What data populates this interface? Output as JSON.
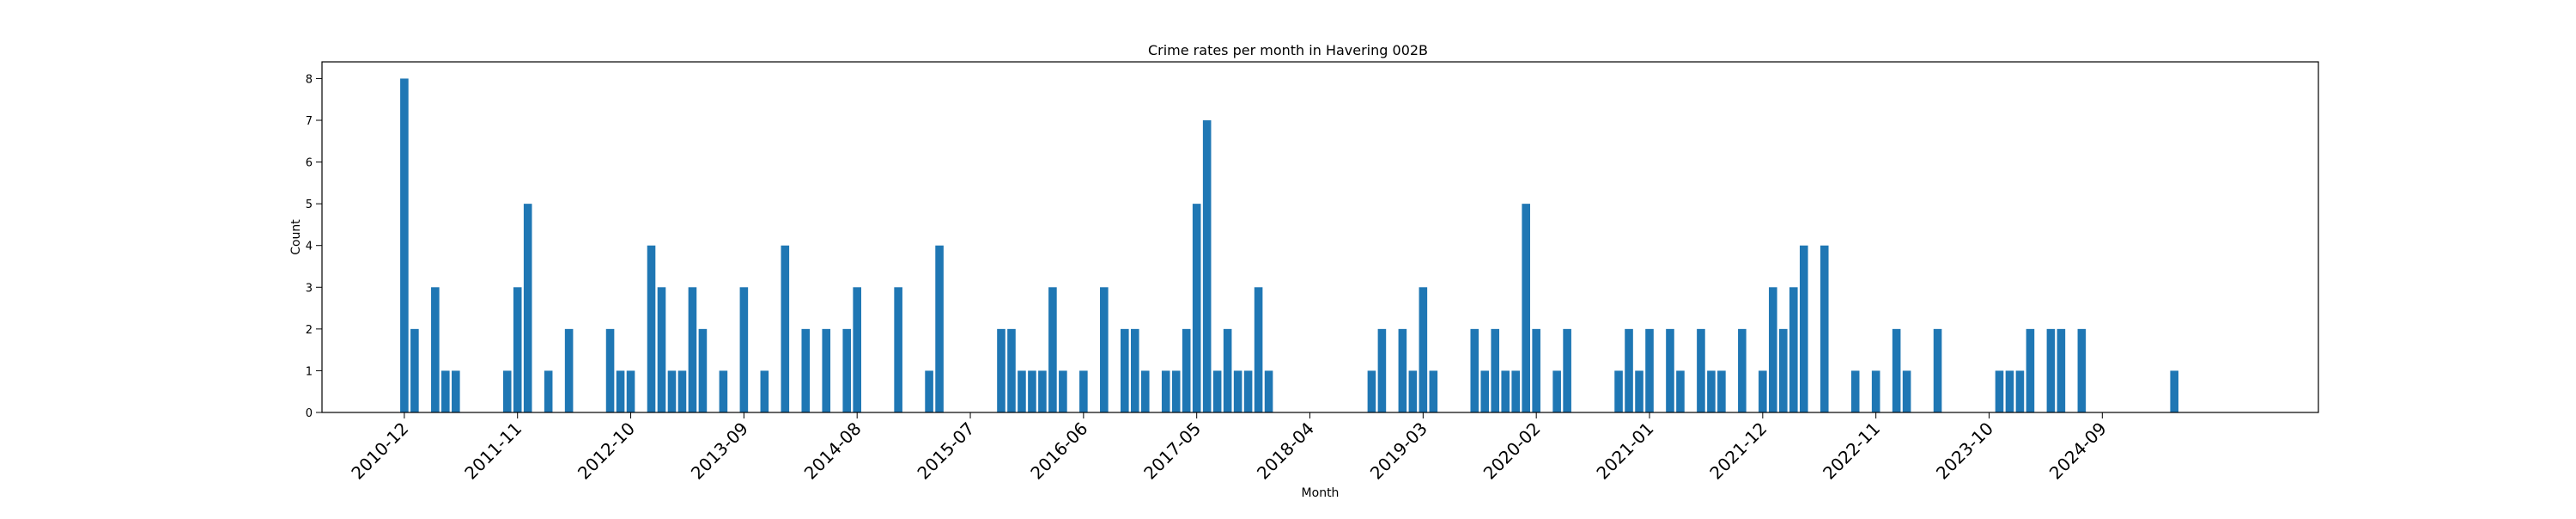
{
  "chart_data": {
    "type": "bar",
    "title": "Crime rates per month in Havering 002B",
    "xlabel": "Month",
    "ylabel": "Count",
    "ylim": [
      0,
      8.4
    ],
    "x_range": [
      "2010-04",
      "2026-06"
    ],
    "y_ticks": [
      0,
      1,
      2,
      3,
      4,
      5,
      6,
      7,
      8
    ],
    "x_ticks": [
      "2010-12",
      "2011-11",
      "2012-10",
      "2013-09",
      "2014-08",
      "2015-07",
      "2016-06",
      "2017-05",
      "2018-04",
      "2019-03",
      "2020-02",
      "2021-01",
      "2021-12",
      "2022-11",
      "2023-10",
      "2024-09"
    ],
    "x_tick_rotation_deg": 45,
    "grid": false,
    "bar_color": "#1f77b4",
    "series": [
      {
        "x": [
          "2010-12",
          "2011-01",
          "2011-03",
          "2011-04",
          "2011-05",
          "2011-10",
          "2011-11",
          "2011-12",
          "2012-02",
          "2012-04",
          "2012-08",
          "2012-09",
          "2012-10",
          "2012-12",
          "2013-01",
          "2013-02",
          "2013-03",
          "2013-04",
          "2013-05",
          "2013-07",
          "2013-09",
          "2013-11",
          "2014-01",
          "2014-03",
          "2014-05",
          "2014-07",
          "2014-08",
          "2014-12",
          "2015-03",
          "2015-04",
          "2015-10",
          "2015-11",
          "2015-12",
          "2016-01",
          "2016-02",
          "2016-03",
          "2016-04",
          "2016-06",
          "2016-08",
          "2016-10",
          "2016-11",
          "2016-12",
          "2017-02",
          "2017-03",
          "2017-04",
          "2017-05",
          "2017-06",
          "2017-07",
          "2017-08",
          "2017-09",
          "2017-10",
          "2017-11",
          "2017-12",
          "2018-10",
          "2018-11",
          "2019-01",
          "2019-02",
          "2019-03",
          "2019-04",
          "2019-08",
          "2019-09",
          "2019-10",
          "2019-11",
          "2019-12",
          "2020-01",
          "2020-02",
          "2020-04",
          "2020-05",
          "2020-10",
          "2020-11",
          "2020-12",
          "2021-01",
          "2021-03",
          "2021-04",
          "2021-06",
          "2021-07",
          "2021-08",
          "2021-10",
          "2021-12",
          "2022-01",
          "2022-02",
          "2022-03",
          "2022-04",
          "2022-06",
          "2022-09",
          "2022-11",
          "2023-01",
          "2023-02",
          "2023-05",
          "2023-11",
          "2023-12",
          "2024-01",
          "2024-02",
          "2024-04",
          "2024-05",
          "2024-07",
          "2025-04"
        ],
        "values": [
          8,
          2,
          3,
          1,
          1,
          1,
          3,
          5,
          1,
          2,
          2,
          1,
          1,
          4,
          3,
          1,
          1,
          3,
          2,
          1,
          3,
          1,
          4,
          2,
          2,
          2,
          3,
          3,
          1,
          4,
          2,
          2,
          1,
          1,
          1,
          3,
          1,
          1,
          3,
          2,
          2,
          1,
          1,
          1,
          2,
          5,
          7,
          1,
          2,
          1,
          1,
          3,
          1,
          1,
          2,
          2,
          1,
          3,
          1,
          2,
          1,
          2,
          1,
          1,
          5,
          2,
          1,
          2,
          1,
          2,
          1,
          2,
          2,
          1,
          2,
          1,
          1,
          2,
          1,
          3,
          2,
          3,
          4,
          4,
          1,
          1,
          2,
          1,
          2,
          1,
          1,
          1,
          2,
          2,
          2,
          2,
          1
        ]
      }
    ]
  }
}
